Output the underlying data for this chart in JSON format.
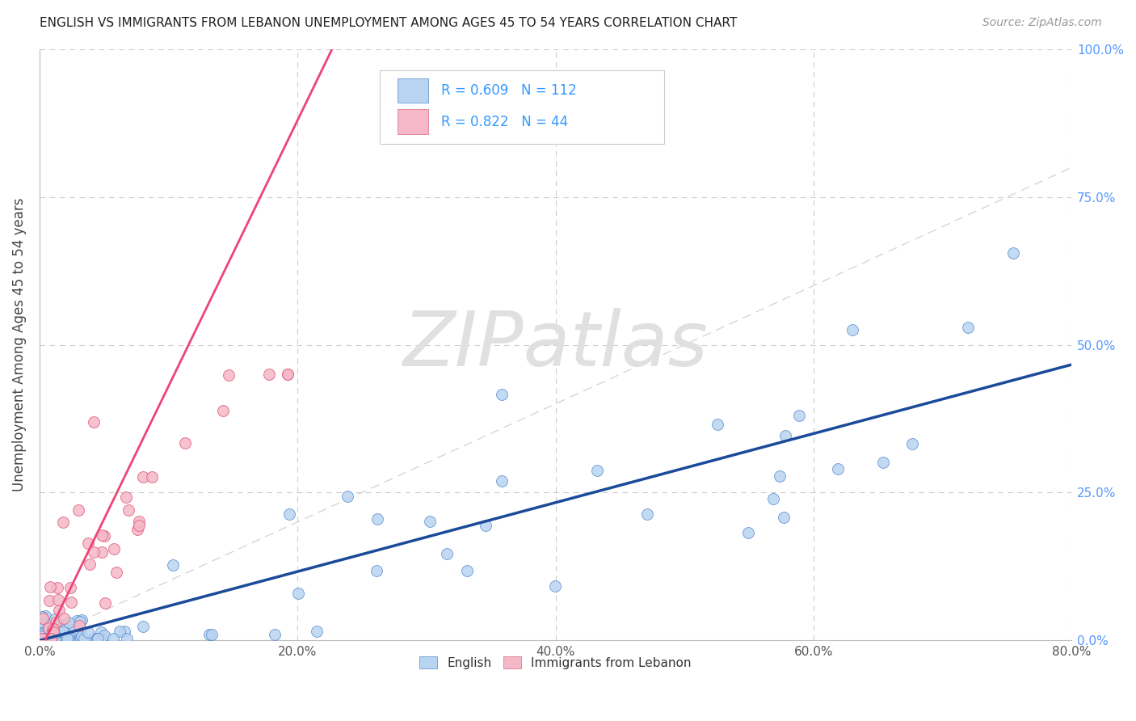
{
  "title": "ENGLISH VS IMMIGRANTS FROM LEBANON UNEMPLOYMENT AMONG AGES 45 TO 54 YEARS CORRELATION CHART",
  "source": "Source: ZipAtlas.com",
  "ylabel": "Unemployment Among Ages 45 to 54 years",
  "xlim": [
    0.0,
    0.8
  ],
  "ylim": [
    0.0,
    1.0
  ],
  "english_fill": "#b8d4f0",
  "english_edge": "#5588cc",
  "lebanon_fill": "#f5b8c8",
  "lebanon_edge": "#e06080",
  "english_line": "#1a4a99",
  "lebanon_line": "#ee4477",
  "diag_color": "#cccccc",
  "grid_color": "#cccccc",
  "R_english": 0.609,
  "N_english": 112,
  "R_lebanon": 0.822,
  "N_lebanon": 44,
  "accent_blue": "#3399ff",
  "watermark_color": "#e0e0e0",
  "title_color": "#222222",
  "source_color": "#999999",
  "label_color": "#444444",
  "tick_color": "#555555",
  "right_tick_color": "#5599ff"
}
